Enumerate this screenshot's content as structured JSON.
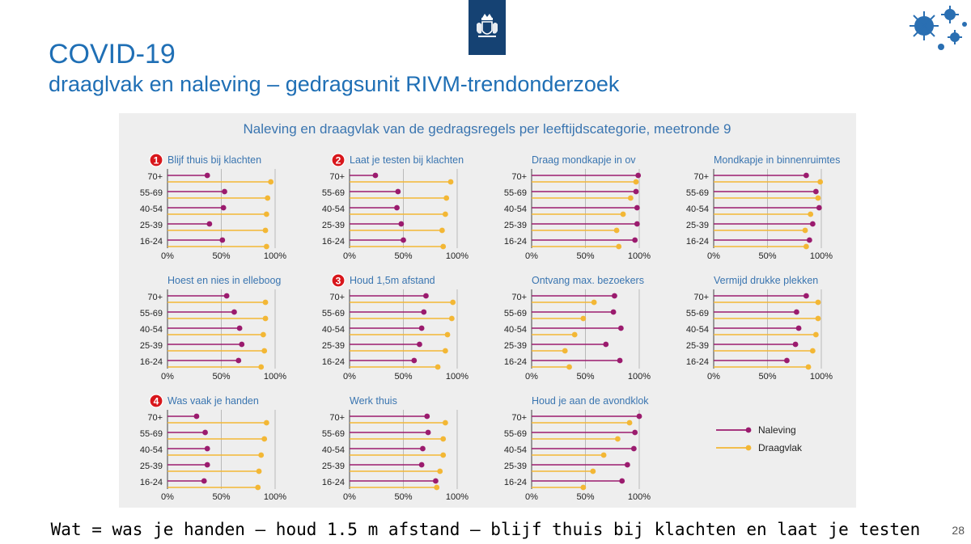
{
  "slide": {
    "title": "COVID-19",
    "subtitle": "draaglvak en naleving – gedragsunit RIVM-trendonderzoek",
    "caption": "Wat = was je handen – houd 1.5 m afstand – blijf thuis bij klachten en laat je testen",
    "page_number": "28"
  },
  "colors": {
    "naleving": "#9b1b6e",
    "draagvlak": "#f3b735",
    "title_blue": "#1f6fb5",
    "chart_title": "#3a75b0",
    "logo_bg": "#154273",
    "badge": "#d8161b"
  },
  "chart_data": {
    "type": "dot-plot",
    "title": "Naleving en draagvlak van de gedragsregels per leeftijdscategorie, meetronde 9",
    "categories": [
      "70+",
      "55-69",
      "40-54",
      "25-39",
      "16-24"
    ],
    "x_ticks": [
      "0%",
      "50%",
      "100%"
    ],
    "xlim": [
      0,
      100
    ],
    "legend": {
      "placement": "bottom-right",
      "naleving": "Naleving",
      "draagvlak": "Draagvlak"
    },
    "panels": [
      {
        "title": "Blijf thuis bij klachten",
        "badge": "1",
        "naleving": [
          37,
          53,
          52,
          39,
          51
        ],
        "draagvlak": [
          96,
          93,
          92,
          91,
          92
        ]
      },
      {
        "title": "Laat je testen bij klachten",
        "badge": "2",
        "naleving": [
          24,
          45,
          44,
          48,
          50
        ],
        "draagvlak": [
          94,
          90,
          89,
          86,
          87
        ]
      },
      {
        "title": "Draag mondkapje in ov",
        "badge": "",
        "naleving": [
          99,
          97,
          98,
          98,
          96
        ],
        "draagvlak": [
          97,
          92,
          85,
          79,
          81
        ]
      },
      {
        "title": "Mondkapje in binnenruimtes",
        "badge": "",
        "naleving": [
          86,
          95,
          98,
          92,
          89
        ],
        "draagvlak": [
          99,
          97,
          90,
          85,
          86
        ]
      },
      {
        "title": "Hoest en nies in elleboog",
        "badge": "",
        "naleving": [
          55,
          62,
          67,
          69,
          66
        ],
        "draagvlak": [
          91,
          91,
          89,
          90,
          87
        ]
      },
      {
        "title": "Houd 1,5m afstand",
        "badge": "3",
        "naleving": [
          71,
          69,
          67,
          65,
          60
        ],
        "draagvlak": [
          96,
          95,
          91,
          89,
          82
        ]
      },
      {
        "title": "Ontvang max. bezoekers",
        "badge": "",
        "naleving": [
          77,
          76,
          83,
          69,
          82
        ],
        "draagvlak": [
          58,
          48,
          40,
          31,
          35
        ]
      },
      {
        "title": "Vermijd drukke plekken",
        "badge": "",
        "naleving": [
          86,
          77,
          79,
          76,
          68
        ],
        "draagvlak": [
          97,
          97,
          95,
          92,
          88
        ]
      },
      {
        "title": "Was vaak je handen",
        "badge": "4",
        "naleving": [
          27,
          35,
          37,
          37,
          34
        ],
        "draagvlak": [
          92,
          90,
          87,
          85,
          84
        ]
      },
      {
        "title": "Werk thuis",
        "badge": "",
        "naleving": [
          72,
          73,
          68,
          67,
          80
        ],
        "draagvlak": [
          89,
          87,
          87,
          84,
          81
        ]
      },
      {
        "title": "Houd je aan de avondklok",
        "badge": "",
        "naleving": [
          100,
          96,
          95,
          89,
          84
        ],
        "draagvlak": [
          91,
          80,
          67,
          57,
          48
        ]
      }
    ]
  }
}
